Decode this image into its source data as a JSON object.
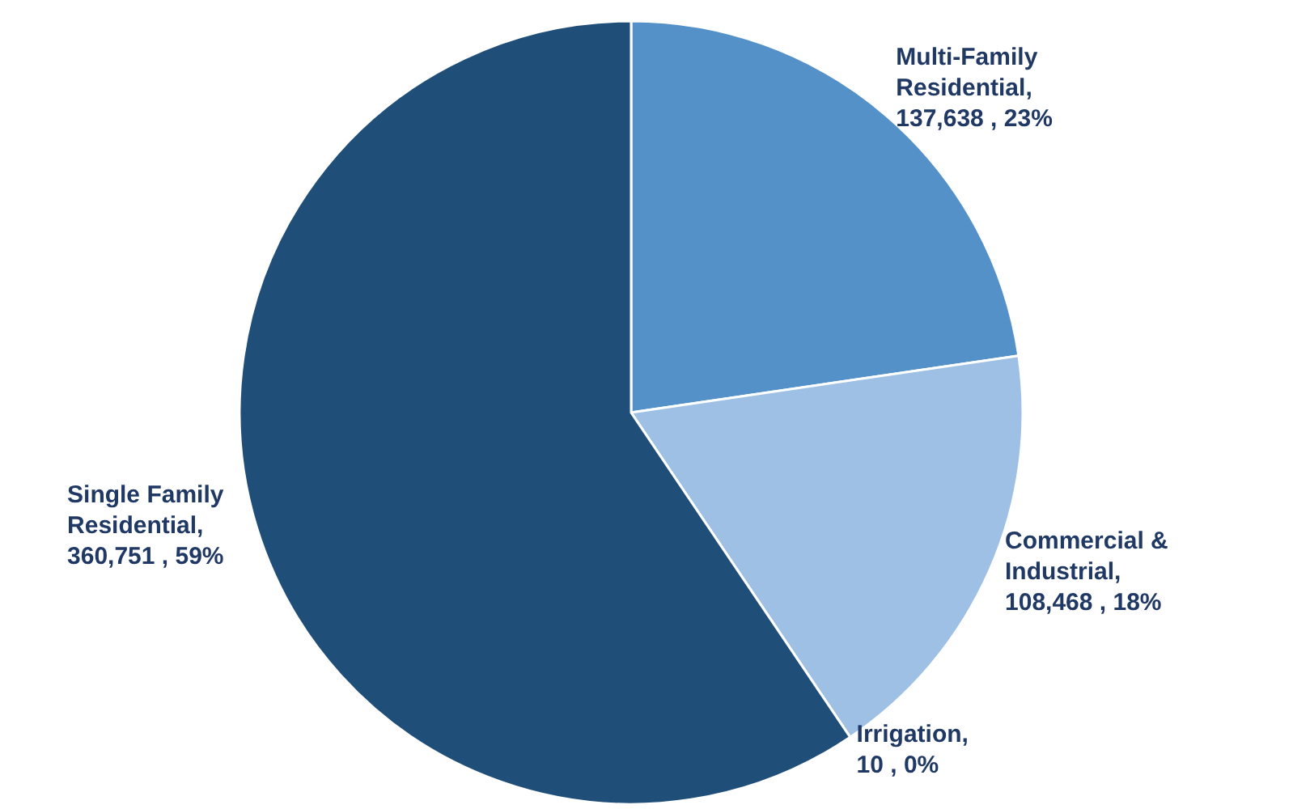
{
  "chart_data": {
    "type": "pie",
    "categories": [
      "Multi-Family Residential",
      "Commercial & Industrial",
      "Irrigation",
      "Single Family Residential"
    ],
    "values": [
      137638,
      108468,
      10,
      360751
    ],
    "value_labels": [
      ", 137,638 , 23%",
      ", 108,468 , 18%",
      ", 10 , 0%",
      ", 360,751 , 59%"
    ],
    "colors": [
      "#5591c9",
      "#9dc0e4",
      "#2e5f8e",
      "#1f4e79"
    ],
    "legend": false
  }
}
